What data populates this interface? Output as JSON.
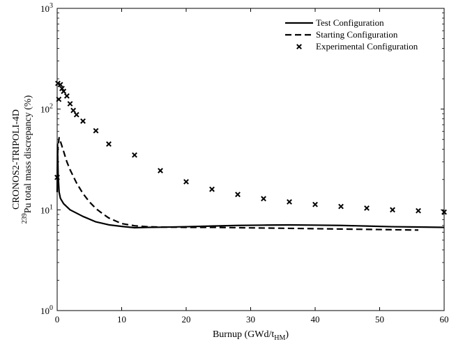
{
  "chart_data": {
    "type": "line",
    "xlabel": {
      "main": "Burnup (GWd/t",
      "sub": "HM",
      "close": ")"
    },
    "ylabel": {
      "line1": "CRONOS2-TRIPOLI-4D",
      "sup": "239",
      "line2_rest": "Pu total mass discrepancy (%)"
    },
    "xlim": [
      0,
      60
    ],
    "ylim": [
      1,
      1000
    ],
    "y_scale": "log",
    "x_ticks": [
      0,
      10,
      20,
      30,
      40,
      50,
      60
    ],
    "y_ticks": [
      {
        "value": 1,
        "base": "10",
        "exp": "0"
      },
      {
        "value": 10,
        "base": "10",
        "exp": "1"
      },
      {
        "value": 100,
        "base": "10",
        "exp": "2"
      },
      {
        "value": 1000,
        "base": "10",
        "exp": "3"
      }
    ],
    "grid": false,
    "legend_position": "top-right",
    "series": [
      {
        "name": "Test Configuration",
        "style": "solid",
        "x": [
          0,
          0.05,
          0.15,
          0.3,
          0.5,
          1,
          2,
          4,
          6,
          8,
          10,
          12,
          14,
          16,
          20,
          24,
          28,
          32,
          36,
          40,
          44,
          48,
          52,
          56,
          60
        ],
        "y": [
          15,
          45,
          22,
          15,
          13,
          11.5,
          10,
          8.6,
          7.6,
          7.1,
          6.85,
          6.65,
          6.7,
          6.72,
          6.8,
          6.9,
          7.0,
          7.05,
          7.08,
          7.05,
          7.0,
          6.9,
          6.8,
          6.75,
          6.7
        ]
      },
      {
        "name": "Starting Configuration",
        "style": "dashed",
        "x": [
          0,
          0.1,
          0.3,
          0.5,
          1,
          1.5,
          2,
          3,
          4,
          5,
          6,
          7,
          8,
          10,
          12,
          14,
          16,
          20,
          24,
          28,
          32,
          36,
          40,
          44,
          48,
          52,
          56
        ],
        "y": [
          15,
          40,
          52,
          48,
          38,
          30,
          25,
          18.5,
          14.5,
          12,
          10.3,
          9.2,
          8.3,
          7.3,
          6.95,
          6.8,
          6.75,
          6.7,
          6.7,
          6.65,
          6.6,
          6.55,
          6.5,
          6.45,
          6.4,
          6.35,
          6.3
        ]
      },
      {
        "name": "Experimental Configuration",
        "style": "markers",
        "x": [
          0,
          0.1,
          0.25,
          0.5,
          0.75,
          1,
          1.5,
          2,
          2.5,
          3,
          4,
          6,
          8,
          12,
          16,
          20,
          24,
          28,
          32,
          36,
          40,
          44,
          48,
          52,
          56,
          60
        ],
        "y": [
          21,
          180,
          125,
          175,
          160,
          150,
          135,
          113,
          97,
          88,
          76,
          61,
          45,
          35,
          24.5,
          19,
          16,
          14.2,
          12.9,
          12,
          11.3,
          10.8,
          10.4,
          10,
          9.8,
          9.5
        ]
      }
    ]
  }
}
